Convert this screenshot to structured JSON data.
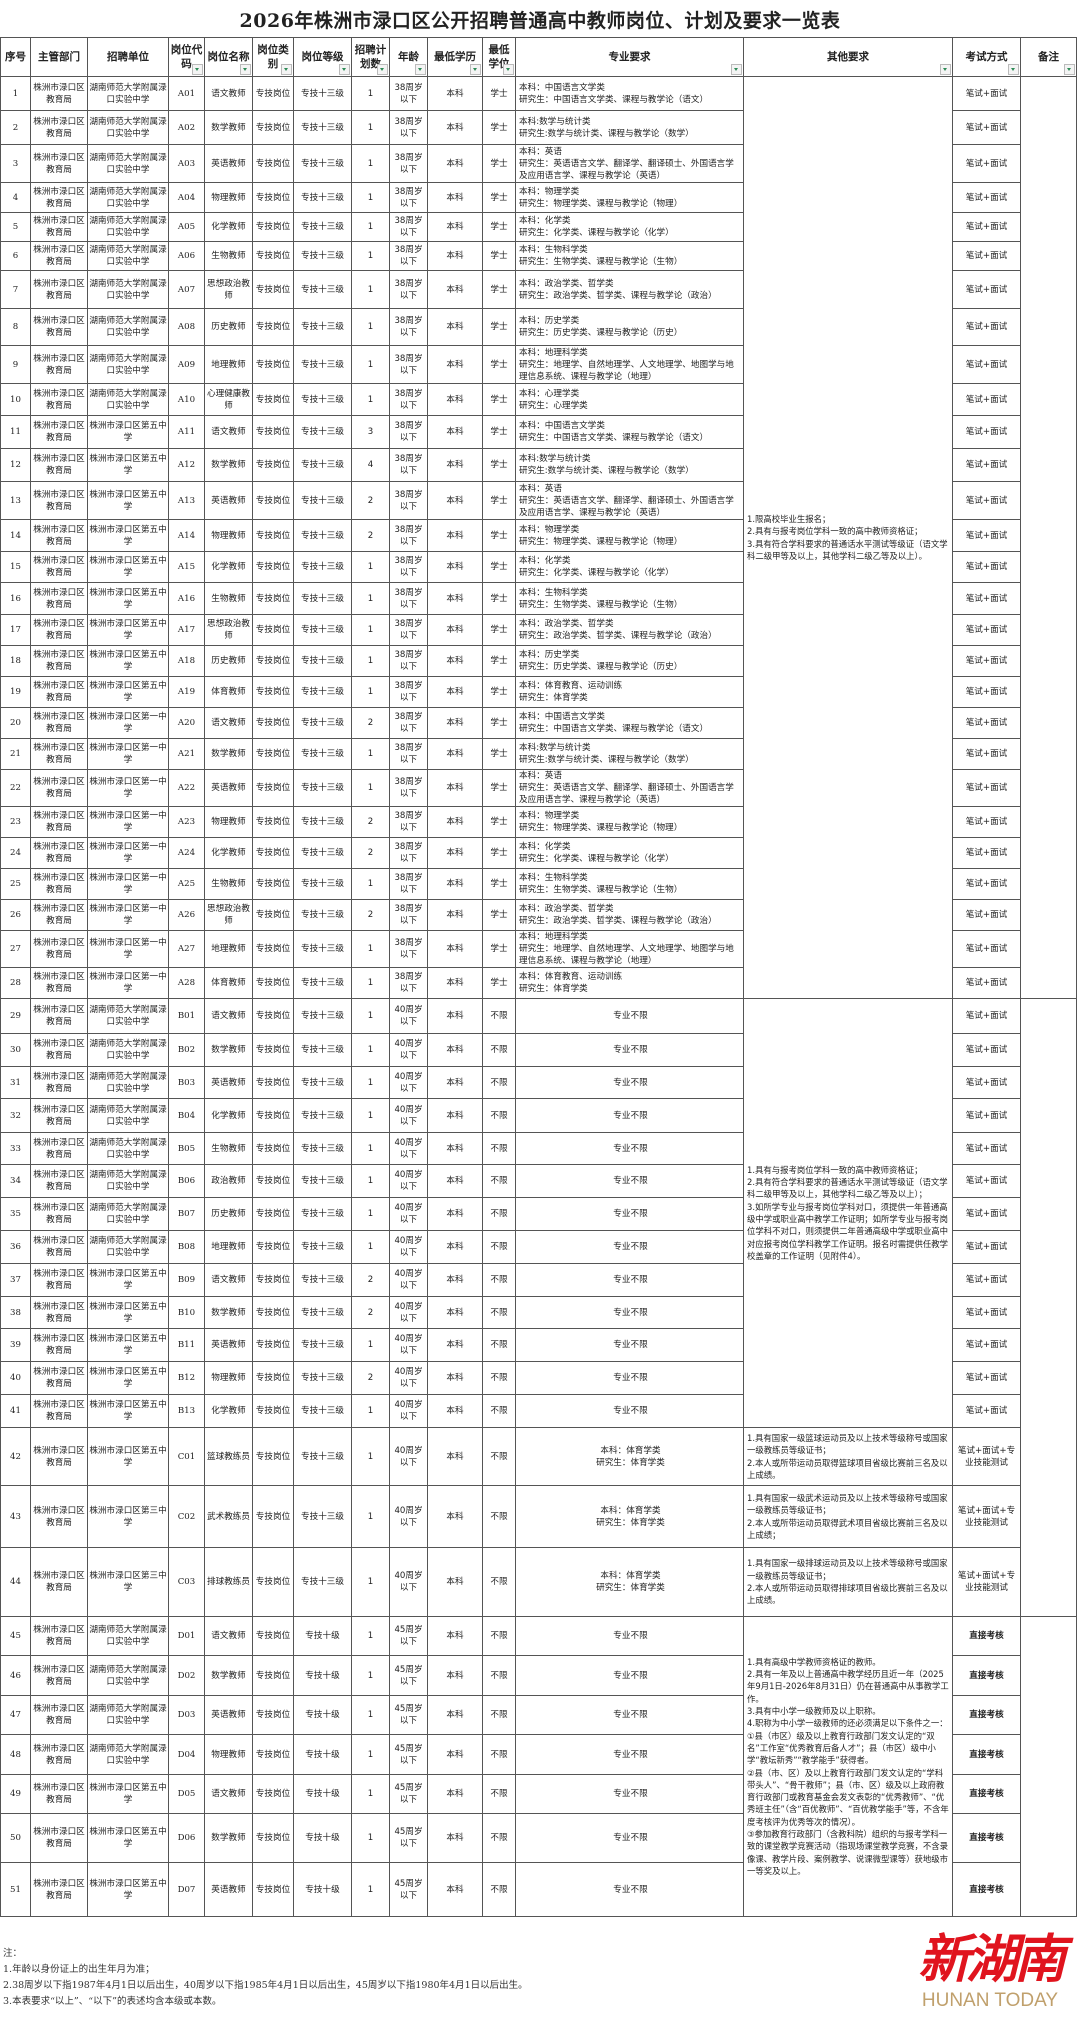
{
  "title": "2026年株洲市渌口区公开招聘普通高中教师岗位、计划及要求一览表",
  "headers": [
    "序号",
    "主管部门",
    "招聘单位",
    "岗位代码",
    "岗位名称",
    "岗位类别",
    "岗位等级",
    "招聘计划数",
    "年龄",
    "最低学历",
    "最低学位",
    "专业要求",
    "其他要求",
    "考试方式",
    "备注"
  ],
  "texts": {
    "dept": "株洲市渌口区教育局",
    "u1": "湖南师范大学附属渌口实验中学",
    "u5": "株洲市渌口区第五中学",
    "u_1": "株洲市渌口区第一中学",
    "u3": "株洲市渌口区第三中学",
    "m_yw": "本科：中国语言文学类\n研究生：中国语言文学类、课程与教学论（语文）",
    "m_sx": "本科:数学与统计类\n研究生:数学与统计类、课程与教学论（数学）",
    "m_yy": "本科：英语\n研究生：英语语言文学、翻译学、翻译硕士、外国语言学及应用语言学、课程与教学论（英语）",
    "m_wl": "本科：物理学类\n研究生：物理学类、课程与教学论（物理）",
    "m_hx": "本科：化学类\n研究生：化学类、课程与教学论（化学）",
    "m_sw": "本科：生物科学类\n研究生：生物学类、课程与教学论（生物）",
    "m_zz": "本科：政治学类、哲学类\n研究生：政治学类、哲学类、课程与教学论（政治）",
    "m_ls": "本科：历史学类\n研究生：历史学类、课程与教学论（历史）",
    "m_dl": "本科：地理科学类\n研究生：地理学、自然地理学、人文地理学、地图学与地理信息系统、课程与教学论（地理）",
    "m_xl": "本科：心理学类\n研究生：心理学类",
    "m_ty": "本科：体育教育、运动训练\n研究生：体育学类",
    "m_tyx": "本科：体育学类\n研究生：体育学类",
    "m_bx": "专业不限"
  },
  "rows": [
    [
      "1",
      "dept",
      "u1",
      "A01",
      "语文教师",
      "专技岗位",
      "专技十三级",
      "1",
      "38周岁以下",
      "本科",
      "学士",
      "m_yw",
      "笔试+面试"
    ],
    [
      "2",
      "dept",
      "u1",
      "A02",
      "数学教师",
      "专技岗位",
      "专技十三级",
      "1",
      "38周岁以下",
      "本科",
      "学士",
      "m_sx",
      "笔试+面试"
    ],
    [
      "3",
      "dept",
      "u1",
      "A03",
      "英语教师",
      "专技岗位",
      "专技十三级",
      "1",
      "38周岁以下",
      "本科",
      "学士",
      "m_yy",
      "笔试+面试"
    ],
    [
      "4",
      "dept",
      "u1",
      "A04",
      "物理教师",
      "专技岗位",
      "专技十三级",
      "1",
      "38周岁以下",
      "本科",
      "学士",
      "m_wl",
      "笔试+面试"
    ],
    [
      "5",
      "dept",
      "u1",
      "A05",
      "化学教师",
      "专技岗位",
      "专技十三级",
      "1",
      "38周岁以下",
      "本科",
      "学士",
      "m_hx",
      "笔试+面试"
    ],
    [
      "6",
      "dept",
      "u1",
      "A06",
      "生物教师",
      "专技岗位",
      "专技十三级",
      "1",
      "38周岁以下",
      "本科",
      "学士",
      "m_sw",
      "笔试+面试"
    ],
    [
      "7",
      "dept",
      "u1",
      "A07",
      "思想政治教师",
      "专技岗位",
      "专技十三级",
      "1",
      "38周岁以下",
      "本科",
      "学士",
      "m_zz",
      "笔试+面试"
    ],
    [
      "8",
      "dept",
      "u1",
      "A08",
      "历史教师",
      "专技岗位",
      "专技十三级",
      "1",
      "38周岁以下",
      "本科",
      "学士",
      "m_ls",
      "笔试+面试"
    ],
    [
      "9",
      "dept",
      "u1",
      "A09",
      "地理教师",
      "专技岗位",
      "专技十三级",
      "1",
      "38周岁以下",
      "本科",
      "学士",
      "m_dl",
      "笔试+面试"
    ],
    [
      "10",
      "dept",
      "u1",
      "A10",
      "心理健康教师",
      "专技岗位",
      "专技十三级",
      "1",
      "38周岁以下",
      "本科",
      "学士",
      "m_xl",
      "笔试+面试"
    ],
    [
      "11",
      "dept",
      "u5",
      "A11",
      "语文教师",
      "专技岗位",
      "专技十三级",
      "3",
      "38周岁以下",
      "本科",
      "学士",
      "m_yw",
      "笔试+面试"
    ],
    [
      "12",
      "dept",
      "u5",
      "A12",
      "数学教师",
      "专技岗位",
      "专技十三级",
      "4",
      "38周岁以下",
      "本科",
      "学士",
      "m_sx",
      "笔试+面试"
    ],
    [
      "13",
      "dept",
      "u5",
      "A13",
      "英语教师",
      "专技岗位",
      "专技十三级",
      "2",
      "38周岁以下",
      "本科",
      "学士",
      "m_yy",
      "笔试+面试"
    ],
    [
      "14",
      "dept",
      "u5",
      "A14",
      "物理教师",
      "专技岗位",
      "专技十三级",
      "2",
      "38周岁以下",
      "本科",
      "学士",
      "m_wl",
      "笔试+面试"
    ],
    [
      "15",
      "dept",
      "u5",
      "A15",
      "化学教师",
      "专技岗位",
      "专技十三级",
      "1",
      "38周岁以下",
      "本科",
      "学士",
      "m_hx",
      "笔试+面试"
    ],
    [
      "16",
      "dept",
      "u5",
      "A16",
      "生物教师",
      "专技岗位",
      "专技十三级",
      "1",
      "38周岁以下",
      "本科",
      "学士",
      "m_sw",
      "笔试+面试"
    ],
    [
      "17",
      "dept",
      "u5",
      "A17",
      "思想政治教师",
      "专技岗位",
      "专技十三级",
      "1",
      "38周岁以下",
      "本科",
      "学士",
      "m_zz",
      "笔试+面试"
    ],
    [
      "18",
      "dept",
      "u5",
      "A18",
      "历史教师",
      "专技岗位",
      "专技十三级",
      "1",
      "38周岁以下",
      "本科",
      "学士",
      "m_ls",
      "笔试+面试"
    ],
    [
      "19",
      "dept",
      "u5",
      "A19",
      "体育教师",
      "专技岗位",
      "专技十三级",
      "1",
      "38周岁以下",
      "本科",
      "学士",
      "m_ty",
      "笔试+面试"
    ],
    [
      "20",
      "dept",
      "u_1",
      "A20",
      "语文教师",
      "专技岗位",
      "专技十三级",
      "2",
      "38周岁以下",
      "本科",
      "学士",
      "m_yw",
      "笔试+面试"
    ],
    [
      "21",
      "dept",
      "u_1",
      "A21",
      "数学教师",
      "专技岗位",
      "专技十三级",
      "1",
      "38周岁以下",
      "本科",
      "学士",
      "m_sx",
      "笔试+面试"
    ],
    [
      "22",
      "dept",
      "u_1",
      "A22",
      "英语教师",
      "专技岗位",
      "专技十三级",
      "1",
      "38周岁以下",
      "本科",
      "学士",
      "m_yy",
      "笔试+面试"
    ],
    [
      "23",
      "dept",
      "u_1",
      "A23",
      "物理教师",
      "专技岗位",
      "专技十三级",
      "2",
      "38周岁以下",
      "本科",
      "学士",
      "m_wl",
      "笔试+面试"
    ],
    [
      "24",
      "dept",
      "u_1",
      "A24",
      "化学教师",
      "专技岗位",
      "专技十三级",
      "2",
      "38周岁以下",
      "本科",
      "学士",
      "m_hx",
      "笔试+面试"
    ],
    [
      "25",
      "dept",
      "u_1",
      "A25",
      "生物教师",
      "专技岗位",
      "专技十三级",
      "1",
      "38周岁以下",
      "本科",
      "学士",
      "m_sw",
      "笔试+面试"
    ],
    [
      "26",
      "dept",
      "u_1",
      "A26",
      "思想政治教师",
      "专技岗位",
      "专技十三级",
      "2",
      "38周岁以下",
      "本科",
      "学士",
      "m_zz",
      "笔试+面试"
    ],
    [
      "27",
      "dept",
      "u_1",
      "A27",
      "地理教师",
      "专技岗位",
      "专技十三级",
      "1",
      "38周岁以下",
      "本科",
      "学士",
      "m_dl",
      "笔试+面试"
    ],
    [
      "28",
      "dept",
      "u_1",
      "A28",
      "体育教师",
      "专技岗位",
      "专技十三级",
      "1",
      "38周岁以下",
      "本科",
      "学士",
      "m_ty",
      "笔试+面试"
    ],
    [
      "29",
      "dept",
      "u1",
      "B01",
      "语文教师",
      "专技岗位",
      "专技十三级",
      "1",
      "40周岁以下",
      "本科",
      "不限",
      "m_bx",
      "笔试+面试"
    ],
    [
      "30",
      "dept",
      "u1",
      "B02",
      "数学教师",
      "专技岗位",
      "专技十三级",
      "1",
      "40周岁以下",
      "本科",
      "不限",
      "m_bx",
      "笔试+面试"
    ],
    [
      "31",
      "dept",
      "u1",
      "B03",
      "英语教师",
      "专技岗位",
      "专技十三级",
      "1",
      "40周岁以下",
      "本科",
      "不限",
      "m_bx",
      "笔试+面试"
    ],
    [
      "32",
      "dept",
      "u1",
      "B04",
      "化学教师",
      "专技岗位",
      "专技十三级",
      "1",
      "40周岁以下",
      "本科",
      "不限",
      "m_bx",
      "笔试+面试"
    ],
    [
      "33",
      "dept",
      "u1",
      "B05",
      "生物教师",
      "专技岗位",
      "专技十三级",
      "1",
      "40周岁以下",
      "本科",
      "不限",
      "m_bx",
      "笔试+面试"
    ],
    [
      "34",
      "dept",
      "u1",
      "B06",
      "政治教师",
      "专技岗位",
      "专技十三级",
      "1",
      "40周岁以下",
      "本科",
      "不限",
      "m_bx",
      "笔试+面试"
    ],
    [
      "35",
      "dept",
      "u1",
      "B07",
      "历史教师",
      "专技岗位",
      "专技十三级",
      "1",
      "40周岁以下",
      "本科",
      "不限",
      "m_bx",
      "笔试+面试"
    ],
    [
      "36",
      "dept",
      "u1",
      "B08",
      "地理教师",
      "专技岗位",
      "专技十三级",
      "1",
      "40周岁以下",
      "本科",
      "不限",
      "m_bx",
      "笔试+面试"
    ],
    [
      "37",
      "dept",
      "u5",
      "B09",
      "语文教师",
      "专技岗位",
      "专技十三级",
      "2",
      "40周岁以下",
      "本科",
      "不限",
      "m_bx",
      "笔试+面试"
    ],
    [
      "38",
      "dept",
      "u5",
      "B10",
      "数学教师",
      "专技岗位",
      "专技十三级",
      "2",
      "40周岁以下",
      "本科",
      "不限",
      "m_bx",
      "笔试+面试"
    ],
    [
      "39",
      "dept",
      "u5",
      "B11",
      "英语教师",
      "专技岗位",
      "专技十三级",
      "1",
      "40周岁以下",
      "本科",
      "不限",
      "m_bx",
      "笔试+面试"
    ],
    [
      "40",
      "dept",
      "u5",
      "B12",
      "物理教师",
      "专技岗位",
      "专技十三级",
      "2",
      "40周岁以下",
      "本科",
      "不限",
      "m_bx",
      "笔试+面试"
    ],
    [
      "41",
      "dept",
      "u5",
      "B13",
      "化学教师",
      "专技岗位",
      "专技十三级",
      "1",
      "40周岁以下",
      "本科",
      "不限",
      "m_bx",
      "笔试+面试"
    ],
    [
      "42",
      "dept",
      "u5",
      "C01",
      "篮球教练员",
      "专技岗位",
      "专技十三级",
      "1",
      "40周岁以下",
      "本科",
      "不限",
      "m_tyx",
      "笔试+面试+专业技能测试"
    ],
    [
      "43",
      "dept",
      "u3",
      "C02",
      "武术教练员",
      "专技岗位",
      "专技十三级",
      "1",
      "40周岁以下",
      "本科",
      "不限",
      "m_tyx",
      "笔试+面试+专业技能测试"
    ],
    [
      "44",
      "dept",
      "u3",
      "C03",
      "排球教练员",
      "专技岗位",
      "专技十三级",
      "1",
      "40周岁以下",
      "本科",
      "不限",
      "m_tyx",
      "笔试+面试+专业技能测试"
    ],
    [
      "45",
      "dept",
      "u1",
      "D01",
      "语文教师",
      "专技岗位",
      "专技十级",
      "1",
      "45周岁以下",
      "本科",
      "不限",
      "m_bx",
      "直接考核"
    ],
    [
      "46",
      "dept",
      "u1",
      "D02",
      "数学教师",
      "专技岗位",
      "专技十级",
      "1",
      "45周岁以下",
      "本科",
      "不限",
      "m_bx",
      "直接考核"
    ],
    [
      "47",
      "dept",
      "u1",
      "D03",
      "英语教师",
      "专技岗位",
      "专技十级",
      "1",
      "45周岁以下",
      "本科",
      "不限",
      "m_bx",
      "直接考核"
    ],
    [
      "48",
      "dept",
      "u1",
      "D04",
      "物理教师",
      "专技岗位",
      "专技十级",
      "1",
      "45周岁以下",
      "本科",
      "不限",
      "m_bx",
      "直接考核"
    ],
    [
      "49",
      "dept",
      "u5",
      "D05",
      "语文教师",
      "专技岗位",
      "专技十级",
      "1",
      "45周岁以下",
      "本科",
      "不限",
      "m_bx",
      "直接考核"
    ],
    [
      "50",
      "dept",
      "u5",
      "D06",
      "数学教师",
      "专技岗位",
      "专技十级",
      "1",
      "45周岁以下",
      "本科",
      "不限",
      "m_bx",
      "直接考核"
    ],
    [
      "51",
      "dept",
      "u5",
      "D07",
      "英语教师",
      "专技岗位",
      "专技十级",
      "1",
      "45周岁以下",
      "本科",
      "不限",
      "m_bx",
      "直接考核"
    ]
  ],
  "other_requirements": [
    {
      "rows": [
        1,
        28
      ],
      "text": "1.限高校毕业生报名；\n2.具有与报考岗位学科一致的高中教师资格证；\n3.具有符合学科要求的普通话水平测试等级证（语文学科二级甲等及以上，其他学科二级乙等及以上）。"
    },
    {
      "rows": [
        29,
        41
      ],
      "text": "1.具有与报考岗位学科一致的高中教师资格证；\n2.具有符合学科要求的普通话水平测试等级证（语文学科二级甲等及以上，其他学科二级乙等及以上）；\n3.如所学专业与报考岗位学科对口，须提供一年普通高级中学或职业高中教学工作证明；如所学专业与报考岗位学科不对口，则须提供二年普通高级中学或职业高中对应报考岗位学科教学工作证明。报名时需提供任教学校盖章的工作证明（见附件4）。"
    },
    {
      "rows": [
        42,
        42
      ],
      "text": "1.具有国家一级篮球运动员及以上技术等级称号或国家一级教练员等级证书；\n2.本人或所带运动员取得篮球项目省级比赛前三名及以上成绩。"
    },
    {
      "rows": [
        43,
        43
      ],
      "text": "1.具有国家一级武术运动员及以上技术等级称号或国家一级教练员等级证书；\n2.本人或所带运动员取得武术项目省级比赛前三名及以上成绩；"
    },
    {
      "rows": [
        44,
        44
      ],
      "text": "1.具有国家一级排球运动员及以上技术等级称号或国家一级教练员等级证书；\n2.本人或所带运动员取得排球项目省级比赛前三名及以上成绩。"
    },
    {
      "rows": [
        45,
        51
      ],
      "text": "1.具有高级中学教师资格证的教师。\n2.具有一年及以上普通高中教学经历且近一年（2025年9月1日-2026年8月31日）仍在普通高中从事教学工作。\n3.具有中小学一级教师及以上职称。\n4.职称为中小学一级教师的还必须满足以下条件之一：\n①县（市区）级及以上教育行政部门发文认定的“双名”工作室“优秀教育后备人才”；县（市区）级中小学“教坛新秀”“教学能手”获得者。\n②县（市、区）及以上教育行政部门发文认定的“学科带头人”、“骨干教师”；县（市、区）级及以上政府教育行政部门或教育基金会发文表彰的“优秀教师”、“优秀班主任”（含“百优教师”、“百优教学能手”等，不含年度考核评为优秀等次的情况）。\n③参加教育行政部门（含教科院）组织的与报考学科一致的课堂教学竞赛活动（指现场课堂教学竞赛，不含录像课、教学片段、案例教学、说课微型课等）获地级市一等奖及以上。"
    }
  ],
  "remarks": [
    {
      "rows": [
        1,
        28
      ],
      "text": ""
    },
    {
      "rows": [
        29,
        44
      ],
      "text": ""
    },
    {
      "rows": [
        45,
        51
      ],
      "text": ""
    }
  ],
  "notes": [
    "注：",
    "1.年龄以身份证上的出生年月为准；",
    "2.38周岁以下指1987年4月1日以后出生，40周岁以下指1985年4月1日以后出生，45周岁以下指1980年4月1日以后出生。",
    "3.本表要求“以上”、“以下”的表述均含本级或本数。"
  ],
  "logo": {
    "cn": "新湖南",
    "en": "HUNAN TODAY"
  },
  "colors": {
    "filter_arrow": "#2e8b57",
    "logo_red": "#e0141e",
    "logo_gold": "#c0a06c"
  }
}
